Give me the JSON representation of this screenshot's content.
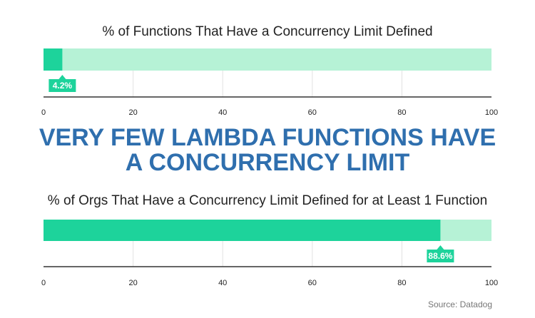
{
  "headline": [
    "VERY FEW LAMBDA FUNCTIONS HAVE",
    "A CONCURRENCY LIMIT"
  ],
  "source": "Source: Datadog",
  "chart_data": [
    {
      "type": "hbar",
      "title": "% of Functions That Have a Concurrency Limit Defined",
      "values": [
        4.2
      ],
      "value_labels": [
        "4.2%"
      ],
      "color": "#1dd39b",
      "track_color": "#b6f2d6",
      "xlim": [
        0,
        100
      ],
      "xticks": [
        0,
        20,
        40,
        60,
        80,
        100
      ],
      "grid": true
    },
    {
      "type": "hbar",
      "title": "% of Orgs That Have a Concurrency Limit Defined for at Least 1 Function",
      "values": [
        88.6
      ],
      "value_labels": [
        "88.6%"
      ],
      "color": "#1dd39b",
      "track_color": "#b6f2d6",
      "xlim": [
        0,
        100
      ],
      "xticks": [
        0,
        20,
        40,
        60,
        80,
        100
      ],
      "grid": true
    }
  ]
}
